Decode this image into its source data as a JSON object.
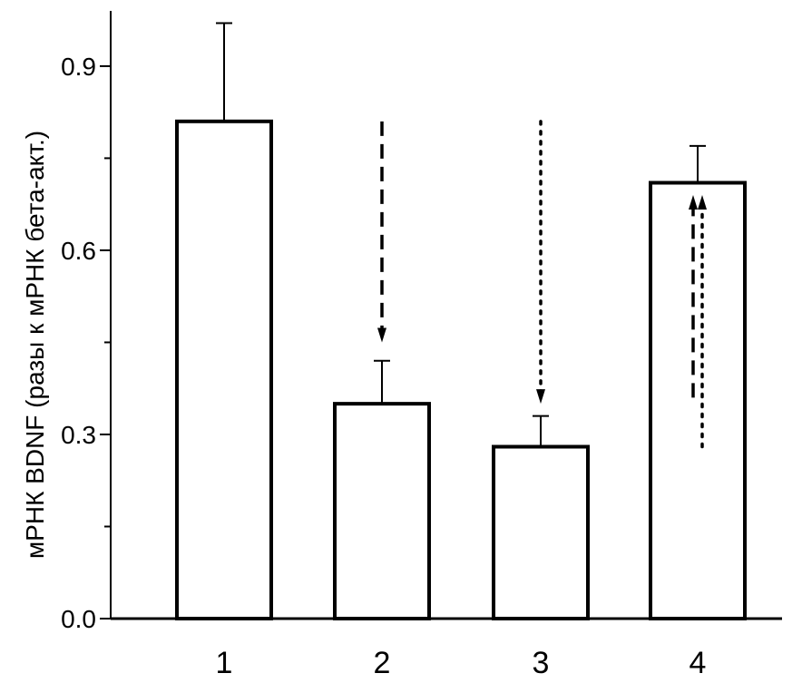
{
  "chart_data": {
    "type": "bar",
    "title": "",
    "xlabel": "",
    "ylabel": "мРНК BDNF (разы к мРНК бета-акт.)",
    "categories": [
      "1",
      "2",
      "3",
      "4"
    ],
    "values": [
      0.81,
      0.35,
      0.28,
      0.71
    ],
    "errors": [
      0.16,
      0.07,
      0.05,
      0.06
    ],
    "ylim": [
      0,
      0.99
    ],
    "yticks": [
      {
        "value": 0.0,
        "label": "0.0"
      },
      {
        "value": 0.3,
        "label": "0.3"
      },
      {
        "value": 0.6,
        "label": "0.6"
      },
      {
        "value": 0.9,
        "label": "0.9"
      }
    ],
    "minor_yticks": [
      0.15,
      0.45,
      0.75
    ],
    "grid": false,
    "bar_fill": "#ffffff",
    "bar_stroke": "#000000",
    "annotations": [
      {
        "type": "arrow",
        "style": "dashed",
        "direction": "down",
        "category": "2",
        "from": 0.81,
        "to": 0.45
      },
      {
        "type": "arrow",
        "style": "dotted",
        "direction": "down",
        "category": "3",
        "from": 0.81,
        "to": 0.35
      },
      {
        "type": "arrow",
        "style": "dashed",
        "direction": "up",
        "category": "4",
        "from": 0.36,
        "to": 0.69,
        "offset": -1
      },
      {
        "type": "arrow",
        "style": "dotted",
        "direction": "up",
        "category": "4",
        "from": 0.28,
        "to": 0.69,
        "offset": 1
      }
    ]
  }
}
